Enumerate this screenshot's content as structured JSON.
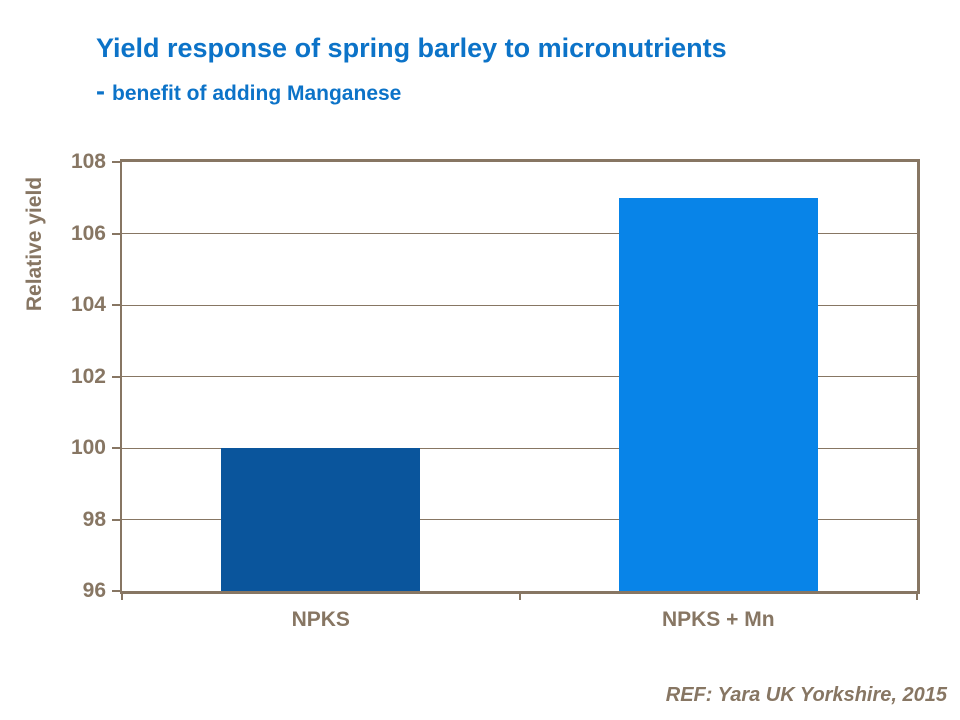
{
  "header": {
    "title": "Yield response of spring barley to micronutrients",
    "subtitle_dash": "-",
    "subtitle": "benefit of adding Manganese"
  },
  "footer": {
    "reference": "REF: Yara UK Yorkshire, 2015"
  },
  "colors": {
    "title_blue": "#0C73C8",
    "axis_brown": "#877663",
    "bar_npks": "#0A559C",
    "bar_npks_mn": "#0884E8",
    "background": "#FFFFFF"
  },
  "chart_data": {
    "type": "bar",
    "categories": [
      "NPKS",
      "NPKS + Mn"
    ],
    "values": [
      100,
      107
    ],
    "bar_colors": [
      "#0A559C",
      "#0884E8"
    ],
    "title": "Yield response of spring barley to micronutrients - benefit of adding Manganese",
    "xlabel": "",
    "ylabel": "Relative yield",
    "ylim": [
      96,
      108
    ],
    "ytick_step": 2,
    "yticks": [
      96,
      98,
      100,
      102,
      104,
      106,
      108
    ],
    "grid": "horizontal",
    "legend": "none",
    "bar_gap_fraction": 0.5
  }
}
